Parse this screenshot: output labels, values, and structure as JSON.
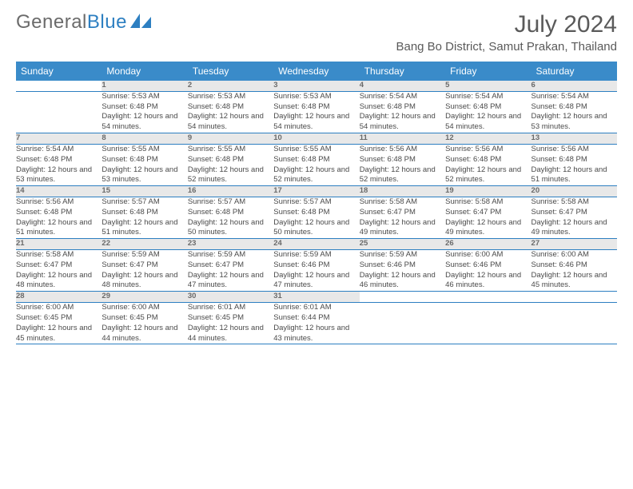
{
  "logo": {
    "text1": "General",
    "text2": "Blue"
  },
  "title": "July 2024",
  "location": "Bang Bo District, Samut Prakan, Thailand",
  "colors": {
    "header_bg": "#3a8bc9",
    "header_text": "#ffffff",
    "daynum_bg": "#e8e8e8",
    "daynum_text": "#6a6a6a",
    "border": "#2d7fc1",
    "logo_gray": "#6b6b6b",
    "logo_blue": "#2d7fc1"
  },
  "day_headers": [
    "Sunday",
    "Monday",
    "Tuesday",
    "Wednesday",
    "Thursday",
    "Friday",
    "Saturday"
  ],
  "weeks": [
    {
      "nums": [
        "",
        "1",
        "2",
        "3",
        "4",
        "5",
        "6"
      ],
      "info": [
        "",
        "Sunrise: 5:53 AM\nSunset: 6:48 PM\nDaylight: 12 hours and 54 minutes.",
        "Sunrise: 5:53 AM\nSunset: 6:48 PM\nDaylight: 12 hours and 54 minutes.",
        "Sunrise: 5:53 AM\nSunset: 6:48 PM\nDaylight: 12 hours and 54 minutes.",
        "Sunrise: 5:54 AM\nSunset: 6:48 PM\nDaylight: 12 hours and 54 minutes.",
        "Sunrise: 5:54 AM\nSunset: 6:48 PM\nDaylight: 12 hours and 54 minutes.",
        "Sunrise: 5:54 AM\nSunset: 6:48 PM\nDaylight: 12 hours and 53 minutes."
      ]
    },
    {
      "nums": [
        "7",
        "8",
        "9",
        "10",
        "11",
        "12",
        "13"
      ],
      "info": [
        "Sunrise: 5:54 AM\nSunset: 6:48 PM\nDaylight: 12 hours and 53 minutes.",
        "Sunrise: 5:55 AM\nSunset: 6:48 PM\nDaylight: 12 hours and 53 minutes.",
        "Sunrise: 5:55 AM\nSunset: 6:48 PM\nDaylight: 12 hours and 52 minutes.",
        "Sunrise: 5:55 AM\nSunset: 6:48 PM\nDaylight: 12 hours and 52 minutes.",
        "Sunrise: 5:56 AM\nSunset: 6:48 PM\nDaylight: 12 hours and 52 minutes.",
        "Sunrise: 5:56 AM\nSunset: 6:48 PM\nDaylight: 12 hours and 52 minutes.",
        "Sunrise: 5:56 AM\nSunset: 6:48 PM\nDaylight: 12 hours and 51 minutes."
      ]
    },
    {
      "nums": [
        "14",
        "15",
        "16",
        "17",
        "18",
        "19",
        "20"
      ],
      "info": [
        "Sunrise: 5:56 AM\nSunset: 6:48 PM\nDaylight: 12 hours and 51 minutes.",
        "Sunrise: 5:57 AM\nSunset: 6:48 PM\nDaylight: 12 hours and 51 minutes.",
        "Sunrise: 5:57 AM\nSunset: 6:48 PM\nDaylight: 12 hours and 50 minutes.",
        "Sunrise: 5:57 AM\nSunset: 6:48 PM\nDaylight: 12 hours and 50 minutes.",
        "Sunrise: 5:58 AM\nSunset: 6:47 PM\nDaylight: 12 hours and 49 minutes.",
        "Sunrise: 5:58 AM\nSunset: 6:47 PM\nDaylight: 12 hours and 49 minutes.",
        "Sunrise: 5:58 AM\nSunset: 6:47 PM\nDaylight: 12 hours and 49 minutes."
      ]
    },
    {
      "nums": [
        "21",
        "22",
        "23",
        "24",
        "25",
        "26",
        "27"
      ],
      "info": [
        "Sunrise: 5:58 AM\nSunset: 6:47 PM\nDaylight: 12 hours and 48 minutes.",
        "Sunrise: 5:59 AM\nSunset: 6:47 PM\nDaylight: 12 hours and 48 minutes.",
        "Sunrise: 5:59 AM\nSunset: 6:47 PM\nDaylight: 12 hours and 47 minutes.",
        "Sunrise: 5:59 AM\nSunset: 6:46 PM\nDaylight: 12 hours and 47 minutes.",
        "Sunrise: 5:59 AM\nSunset: 6:46 PM\nDaylight: 12 hours and 46 minutes.",
        "Sunrise: 6:00 AM\nSunset: 6:46 PM\nDaylight: 12 hours and 46 minutes.",
        "Sunrise: 6:00 AM\nSunset: 6:46 PM\nDaylight: 12 hours and 45 minutes."
      ]
    },
    {
      "nums": [
        "28",
        "29",
        "30",
        "31",
        "",
        "",
        ""
      ],
      "info": [
        "Sunrise: 6:00 AM\nSunset: 6:45 PM\nDaylight: 12 hours and 45 minutes.",
        "Sunrise: 6:00 AM\nSunset: 6:45 PM\nDaylight: 12 hours and 44 minutes.",
        "Sunrise: 6:01 AM\nSunset: 6:45 PM\nDaylight: 12 hours and 44 minutes.",
        "Sunrise: 6:01 AM\nSunset: 6:44 PM\nDaylight: 12 hours and 43 minutes.",
        "",
        "",
        ""
      ]
    }
  ]
}
